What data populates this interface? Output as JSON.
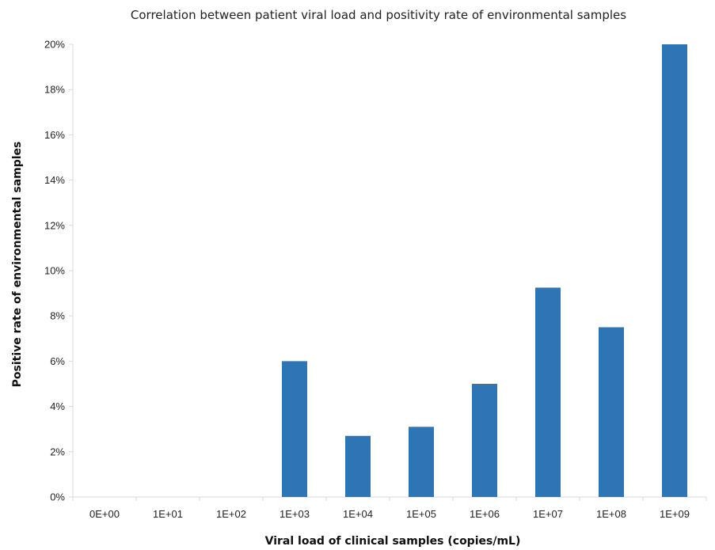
{
  "chart_data": {
    "type": "bar",
    "title": "Correlation between patient viral load and positivity rate of environmental samples",
    "xlabel": "Viral load of clinical samples (copies/mL)",
    "ylabel": "Positive rate of environmental samples",
    "categories": [
      "0E+00",
      "1E+01",
      "1E+02",
      "1E+03",
      "1E+04",
      "1E+05",
      "1E+06",
      "1E+07",
      "1E+08",
      "1E+09"
    ],
    "values": [
      0,
      0,
      0,
      6.0,
      2.7,
      3.1,
      5.0,
      9.25,
      7.5,
      20.0
    ],
    "value_unit": "%",
    "ylim": [
      0,
      20
    ],
    "yticks": [
      "0%",
      "2%",
      "4%",
      "6%",
      "8%",
      "10%",
      "12%",
      "14%",
      "16%",
      "18%",
      "20%"
    ],
    "grid": false,
    "legend": "none",
    "bar_color": "#2E75B6",
    "axis_color": "#D9D9D9"
  }
}
